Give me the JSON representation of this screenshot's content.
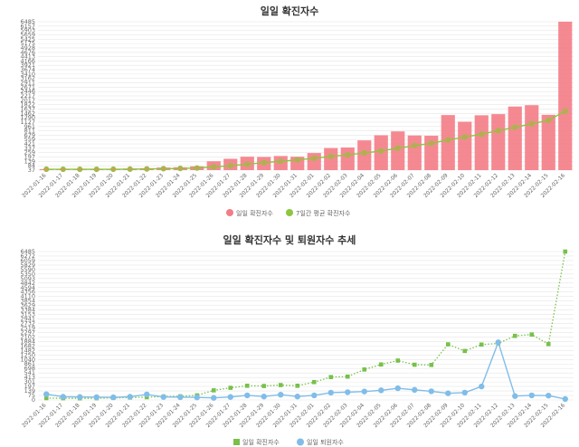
{
  "chart_data": [
    {
      "type": "bar",
      "title": "일일 확진자수",
      "categories": [
        "2022-01-16",
        "2022-01-17",
        "2022-01-18",
        "2022-01-19",
        "2022-01-20",
        "2022-01-21",
        "2022-01-22",
        "2022-01-23",
        "2022-01-24",
        "2022-01-25",
        "2022-01-26",
        "2022-01-27",
        "2022-01-28",
        "2022-01-29",
        "2022-01-30",
        "2022-01-31",
        "2022-02-01",
        "2022-02-02",
        "2022-02-03",
        "2022-02-04",
        "2022-02-05",
        "2022-02-06",
        "2022-02-07",
        "2022-02-08",
        "2022-02-09",
        "2022-02-10",
        "2022-02-11",
        "2022-02-12",
        "2022-02-13",
        "2022-02-14",
        "2022-02-15",
        "2022-02-16"
      ],
      "yticks": [
        "37",
        "84",
        "139",
        "197",
        "259",
        "337",
        "421",
        "559",
        "679",
        "811",
        "961",
        "1127",
        "1290",
        "1462",
        "1637",
        "1822",
        "2017",
        "2217",
        "2446",
        "2671",
        "2911",
        "3162",
        "3410",
        "3674",
        "3921",
        "4166",
        "4413",
        "4676",
        "4928",
        "5175",
        "5425",
        "5659",
        "5903",
        "6157",
        "6485"
      ],
      "ylim": [
        37,
        6485
      ],
      "series": [
        {
          "name": "일일 확진자수",
          "color": "#f47c86",
          "kind": "bar",
          "values": [
            80,
            75,
            70,
            75,
            90,
            105,
            120,
            150,
            160,
            200,
            420,
            530,
            620,
            610,
            650,
            620,
            780,
            1000,
            1020,
            1330,
            1550,
            1720,
            1540,
            1530,
            2430,
            2140,
            2420,
            2470,
            2800,
            2860,
            2440,
            6485
          ]
        },
        {
          "name": "7일간 평균 확진자수",
          "color": "#8dc63f",
          "kind": "line",
          "values": [
            75,
            74,
            72,
            72,
            75,
            80,
            87,
            98,
            110,
            128,
            175,
            230,
            295,
            360,
            420,
            480,
            550,
            635,
            700,
            780,
            870,
            990,
            1100,
            1200,
            1350,
            1470,
            1600,
            1750,
            1900,
            2050,
            2200,
            2600
          ]
        }
      ],
      "legend": "bottom"
    },
    {
      "type": "line",
      "title": "일일 확진자수 및 퇴원자수 추세",
      "categories": [
        "2022-01-16",
        "2022-01-17",
        "2022-01-18",
        "2022-01-19",
        "2022-01-20",
        "2022-01-21",
        "2022-01-22",
        "2022-01-23",
        "2022-01-24",
        "2022-01-25",
        "2022-01-26",
        "2022-01-27",
        "2022-01-28",
        "2022-01-29",
        "2022-01-30",
        "2022-01-31",
        "2022-02-01",
        "2022-02-02",
        "2022-02-03",
        "2022-02-04",
        "2022-02-05",
        "2022-02-06",
        "2022-02-07",
        "2022-02-08",
        "2022-02-09",
        "2022-02-10",
        "2022-02-11",
        "2022-02-12",
        "2022-02-13",
        "2022-02-14",
        "2022-02-15",
        "2022-02-16"
      ],
      "yticks": [
        "0",
        "75",
        "139",
        "197",
        "301",
        "413",
        "541",
        "698",
        "861",
        "1040",
        "1250",
        "1482",
        "1682",
        "1884",
        "2102",
        "2297",
        "2519",
        "2732",
        "2941",
        "3153",
        "3384",
        "3629",
        "3854",
        "4110",
        "4356",
        "4594",
        "4842",
        "5093",
        "5350",
        "5590",
        "5829",
        "6059",
        "6272",
        "6485"
      ],
      "ylim": [
        0,
        6485
      ],
      "series": [
        {
          "name": "일일 확진자수",
          "color": "#78c04a",
          "kind": "dotted-square",
          "values": [
            80,
            75,
            70,
            75,
            90,
            105,
            120,
            150,
            160,
            200,
            420,
            530,
            620,
            610,
            650,
            620,
            780,
            1000,
            1020,
            1330,
            1550,
            1720,
            1540,
            1530,
            2430,
            2140,
            2420,
            2470,
            2800,
            2860,
            2440,
            6485
          ]
        },
        {
          "name": "일일 퇴원자수",
          "color": "#80bde8",
          "kind": "line-circle",
          "values": [
            250,
            140,
            130,
            120,
            115,
            140,
            240,
            130,
            120,
            110,
            90,
            130,
            200,
            150,
            230,
            150,
            200,
            320,
            340,
            370,
            420,
            510,
            440,
            380,
            290,
            320,
            590,
            2520,
            170,
            200,
            190,
            40
          ]
        }
      ],
      "legend": "bottom"
    }
  ]
}
